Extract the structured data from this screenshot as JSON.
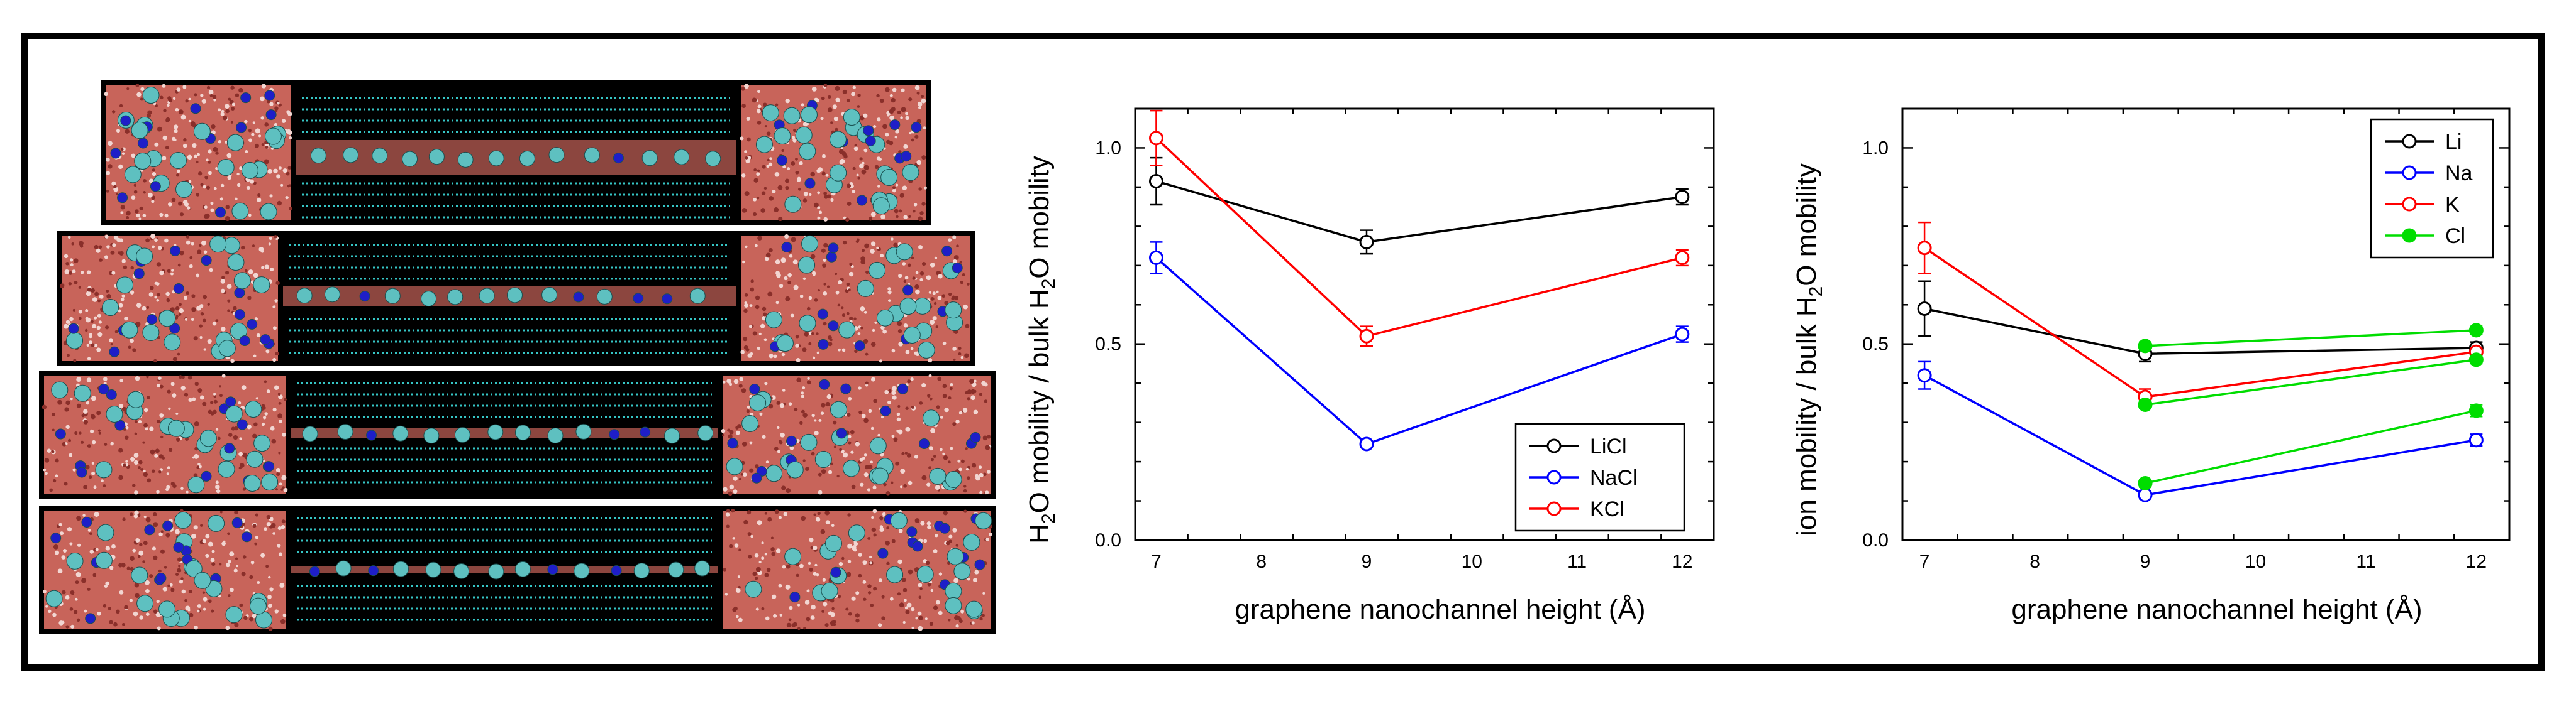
{
  "simulation_panel": {
    "snapshot_count": 4,
    "colors": {
      "background": "#000000",
      "water": "#c8645a",
      "graphene": "#36c6c6",
      "cation": "#1e1ec8",
      "anion": "#5ec0c0"
    }
  },
  "chart_data": [
    {
      "type": "line",
      "x": [
        7,
        9,
        12
      ],
      "xlim": [
        6.8,
        12.3
      ],
      "ylim": [
        0.0,
        1.1
      ],
      "xticks": [
        7,
        8,
        9,
        10,
        11,
        12
      ],
      "yticks": [
        0.0,
        0.5,
        1.0
      ],
      "ytick_labels": [
        "0.0",
        "0.5",
        "1.0"
      ],
      "xlabel": "graphene nanochannel height (Å)",
      "ylabel": {
        "parts": [
          "H",
          "2",
          "O mobility / bulk H",
          "2",
          "O mobility"
        ]
      },
      "legend_position": "bottom-right",
      "series": [
        {
          "name": "LiCl",
          "color": "#000000",
          "marker": "open-circle",
          "values": [
            0.915,
            0.76,
            0.875
          ],
          "errors": [
            0.06,
            0.03,
            0.02
          ]
        },
        {
          "name": "NaCl",
          "color": "#0000ff",
          "marker": "open-circle",
          "values": [
            0.72,
            0.245,
            0.525
          ],
          "errors": [
            0.04,
            0.005,
            0.02
          ]
        },
        {
          "name": "KCl",
          "color": "#ff0000",
          "marker": "open-circle",
          "values": [
            1.025,
            0.52,
            0.72
          ],
          "errors": [
            0.07,
            0.025,
            0.02
          ]
        }
      ]
    },
    {
      "type": "line",
      "xlim": [
        6.8,
        12.3
      ],
      "ylim": [
        0.0,
        1.1
      ],
      "xticks": [
        7,
        8,
        9,
        10,
        11,
        12
      ],
      "yticks": [
        0.0,
        0.5,
        1.0
      ],
      "ytick_labels": [
        "0.0",
        "0.5",
        "1.0"
      ],
      "xlabel": "graphene nanochannel height (Å)",
      "ylabel": {
        "parts": [
          "ion mobility / bulk H",
          "2",
          "O mobility"
        ]
      },
      "legend_position": "top-right",
      "series": [
        {
          "name": "Li",
          "color": "#000000",
          "marker": "open-circle",
          "x": [
            7,
            9,
            12
          ],
          "values": [
            0.59,
            0.475,
            0.49
          ],
          "errors": [
            0.07,
            0.02,
            0.015
          ]
        },
        {
          "name": "Na",
          "color": "#0000ff",
          "marker": "open-circle",
          "x": [
            7,
            9,
            12
          ],
          "values": [
            0.42,
            0.115,
            0.255
          ],
          "errors": [
            0.035,
            0.01,
            0.015
          ]
        },
        {
          "name": "K",
          "color": "#ff0000",
          "marker": "open-circle",
          "x": [
            7,
            9,
            12
          ],
          "values": [
            0.745,
            0.365,
            0.48
          ],
          "errors": [
            0.065,
            0.02,
            0.01
          ]
        },
        {
          "name": "Cl",
          "color": "#00dd00",
          "marker": "filled-circle",
          "x": [
            9,
            12
          ],
          "values": [
            0.495,
            0.535
          ],
          "errors": [
            0.01,
            0.01
          ]
        },
        {
          "name": "",
          "color": "#00dd00",
          "marker": "filled-circle",
          "x": [
            9,
            12
          ],
          "values": [
            0.345,
            0.46
          ],
          "errors": [
            0.01,
            0.01
          ]
        },
        {
          "name": "",
          "color": "#00dd00",
          "marker": "filled-circle",
          "x": [
            9,
            12
          ],
          "values": [
            0.145,
            0.33
          ],
          "errors": [
            0.01,
            0.015
          ]
        }
      ]
    }
  ]
}
